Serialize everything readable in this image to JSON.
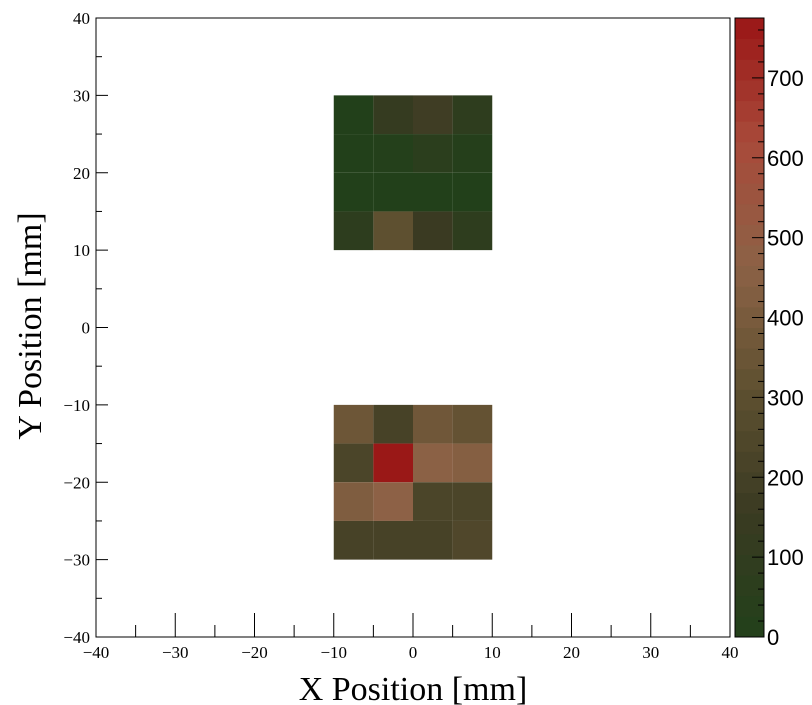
{
  "chart_data": {
    "type": "heatmap",
    "title": "",
    "xlabel": "X Position [mm]",
    "ylabel": "Y Position [mm]",
    "xlim": [
      -40,
      40
    ],
    "ylim": [
      -40,
      40
    ],
    "x_ticks": [
      "−40",
      "−30",
      "−20",
      "−10",
      "0",
      "10",
      "20",
      "30",
      "40"
    ],
    "y_ticks": [
      "−40",
      "−30",
      "−20",
      "−10",
      "0",
      "10",
      "20",
      "30",
      "40"
    ],
    "bin_width": 5,
    "grid": false,
    "colorbar": {
      "min": 0,
      "max": 775,
      "ticks": [
        "0",
        "100",
        "200",
        "300",
        "400",
        "500",
        "600",
        "700"
      ],
      "tick_values": [
        0,
        100,
        200,
        300,
        400,
        500,
        600,
        700
      ],
      "colors": [
        "#22401a",
        "#3a3a22",
        "#5e5030",
        "#8c6246",
        "#a84a3a",
        "#9a1616"
      ]
    },
    "cells": [
      {
        "x": -10,
        "y": 25,
        "value": 0
      },
      {
        "x": -5,
        "y": 25,
        "value": 120
      },
      {
        "x": 0,
        "y": 25,
        "value": 175
      },
      {
        "x": 5,
        "y": 25,
        "value": 80
      },
      {
        "x": -10,
        "y": 20,
        "value": 0
      },
      {
        "x": -5,
        "y": 20,
        "value": 10
      },
      {
        "x": 0,
        "y": 20,
        "value": 60
      },
      {
        "x": 5,
        "y": 20,
        "value": 20
      },
      {
        "x": -10,
        "y": 15,
        "value": 0
      },
      {
        "x": -5,
        "y": 15,
        "value": 0
      },
      {
        "x": 0,
        "y": 15,
        "value": 0
      },
      {
        "x": 5,
        "y": 15,
        "value": 0
      },
      {
        "x": -10,
        "y": 10,
        "value": 70
      },
      {
        "x": -5,
        "y": 10,
        "value": 310
      },
      {
        "x": 0,
        "y": 10,
        "value": 155
      },
      {
        "x": 5,
        "y": 10,
        "value": 80
      },
      {
        "x": -10,
        "y": -15,
        "value": 360
      },
      {
        "x": -5,
        "y": -15,
        "value": 210
      },
      {
        "x": 0,
        "y": -15,
        "value": 370
      },
      {
        "x": 5,
        "y": -15,
        "value": 330
      },
      {
        "x": -10,
        "y": -20,
        "value": 230
      },
      {
        "x": -5,
        "y": -20,
        "value": 770
      },
      {
        "x": 0,
        "y": -20,
        "value": 460
      },
      {
        "x": 5,
        "y": -20,
        "value": 440
      },
      {
        "x": -10,
        "y": -25,
        "value": 420
      },
      {
        "x": -5,
        "y": -25,
        "value": 470
      },
      {
        "x": 0,
        "y": -25,
        "value": 230
      },
      {
        "x": 5,
        "y": -25,
        "value": 230
      },
      {
        "x": -10,
        "y": -30,
        "value": 210
      },
      {
        "x": -5,
        "y": -30,
        "value": 210
      },
      {
        "x": 0,
        "y": -30,
        "value": 210
      },
      {
        "x": 5,
        "y": -30,
        "value": 250
      }
    ]
  }
}
